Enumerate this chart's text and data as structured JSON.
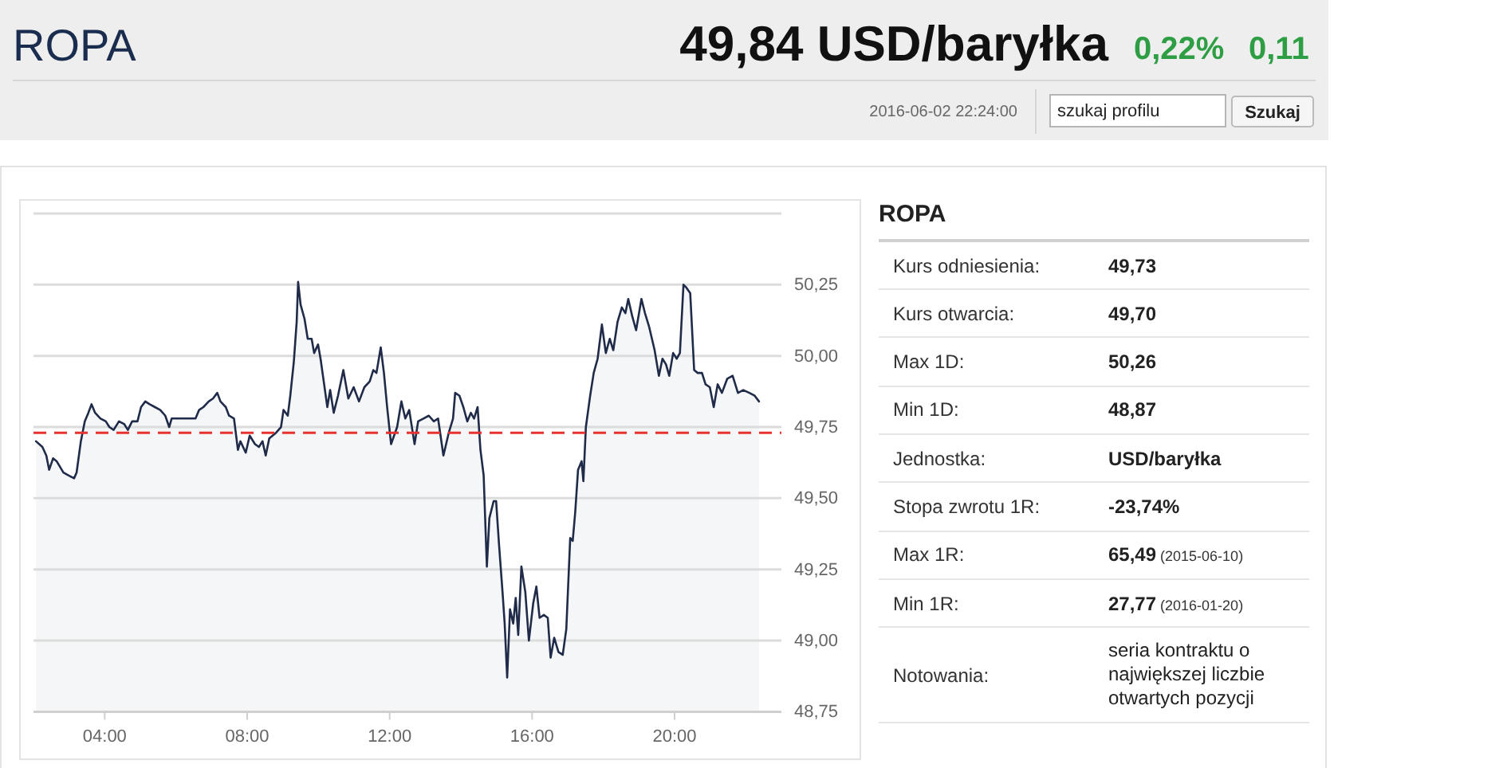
{
  "chart_data": [
    {
      "type": "other",
      "title": "ROPA",
      "annotations": [
        "49,84 USD/baryłka",
        "0,22%",
        "0,11",
        "2016-06-02 22:24:00",
        "szukaj profilu",
        "Szukaj"
      ]
    },
    {
      "type": "area",
      "color": "#1f2b48",
      "xlim": [
        2,
        23
      ],
      "ylim": [
        48.75,
        50.5
      ],
      "xticks": [
        {
          "value": 4,
          "label": "04:00"
        },
        {
          "value": 8,
          "label": "08:00"
        },
        {
          "value": 12,
          "label": "12:00"
        },
        {
          "value": 16,
          "label": "16:00"
        },
        {
          "value": 20,
          "label": "20:00"
        }
      ],
      "yticks": [
        {
          "value": 48.75,
          "label": "48,75"
        },
        {
          "value": 49,
          "label": "49,00"
        },
        {
          "value": 49.25,
          "label": "49,25"
        },
        {
          "value": 49.5,
          "label": "49,50"
        },
        {
          "value": 49.75,
          "label": "49,75"
        },
        {
          "value": 50,
          "label": "50,00"
        },
        {
          "value": 50.25,
          "label": "50,25"
        },
        {
          "value": 50.5,
          "label": null
        }
      ],
      "grid": "y",
      "ref_lines": [
        {
          "axis": "y",
          "value": 49.73,
          "color": "#e8322f",
          "line_style": "dashed"
        }
      ],
      "x": [
        2.07,
        2.25,
        2.36,
        2.44,
        2.55,
        2.65,
        2.84,
        2.99,
        3.14,
        3.21,
        3.33,
        3.44,
        3.54,
        3.63,
        3.73,
        3.88,
        4.03,
        4.13,
        4.25,
        4.4,
        4.55,
        4.65,
        4.77,
        4.92,
        5.02,
        5.14,
        5.26,
        5.41,
        5.56,
        5.7,
        5.81,
        5.88,
        6.03,
        6.33,
        6.55,
        6.65,
        6.77,
        6.92,
        7.04,
        7.16,
        7.25,
        7.4,
        7.49,
        7.63,
        7.74,
        7.81,
        7.96,
        8.07,
        8.22,
        8.33,
        8.43,
        8.52,
        8.62,
        8.81,
        8.95,
        9.02,
        9.14,
        9.21,
        9.31,
        9.39,
        9.43,
        9.5,
        9.61,
        9.7,
        9.81,
        9.88,
        9.99,
        10.06,
        10.15,
        10.25,
        10.33,
        10.43,
        10.55,
        10.7,
        10.84,
        10.99,
        11.14,
        11.29,
        11.44,
        11.54,
        11.63,
        11.75,
        11.84,
        11.93,
        12.04,
        12.21,
        12.33,
        12.44,
        12.55,
        12.7,
        12.8,
        12.95,
        13.1,
        13.24,
        13.36,
        13.51,
        13.66,
        13.78,
        13.84,
        13.96,
        14.07,
        14.18,
        14.28,
        14.37,
        14.47,
        14.55,
        14.64,
        14.73,
        14.8,
        14.92,
        14.99,
        15.07,
        15.17,
        15.23,
        15.3,
        15.38,
        15.47,
        15.54,
        15.61,
        15.7,
        15.81,
        15.91,
        16.03,
        16.12,
        16.21,
        16.33,
        16.44,
        16.52,
        16.62,
        16.74,
        16.86,
        16.96,
        17.07,
        17.14,
        17.21,
        17.29,
        17.39,
        17.44,
        17.51,
        17.63,
        17.73,
        17.84,
        17.96,
        18.07,
        18.18,
        18.28,
        18.4,
        18.52,
        18.62,
        18.7,
        18.81,
        18.92,
        19.07,
        19.17,
        19.29,
        19.44,
        19.56,
        19.66,
        19.76,
        19.85,
        19.96,
        20.06,
        20.15,
        20.25,
        20.33,
        20.44,
        20.55,
        20.65,
        20.77,
        20.87,
        20.99,
        21.1,
        21.21,
        21.33,
        21.48,
        21.63,
        21.78,
        21.93,
        22.1,
        22.25,
        22.37
      ],
      "values": [
        49.7,
        49.68,
        49.65,
        49.6,
        49.64,
        49.63,
        49.59,
        49.58,
        49.57,
        49.59,
        49.7,
        49.77,
        49.8,
        49.83,
        49.8,
        49.78,
        49.77,
        49.75,
        49.74,
        49.77,
        49.76,
        49.74,
        49.77,
        49.77,
        49.82,
        49.84,
        49.83,
        49.82,
        49.81,
        49.79,
        49.75,
        49.78,
        49.78,
        49.78,
        49.78,
        49.81,
        49.82,
        49.84,
        49.85,
        49.87,
        49.84,
        49.82,
        49.79,
        49.78,
        49.67,
        49.7,
        49.66,
        49.72,
        49.69,
        49.68,
        49.7,
        49.65,
        49.71,
        49.73,
        49.75,
        49.81,
        49.79,
        49.86,
        49.98,
        50.12,
        50.26,
        50.18,
        50.13,
        50.06,
        50.06,
        50.01,
        50.04,
        49.99,
        49.91,
        49.82,
        49.88,
        49.8,
        49.86,
        49.95,
        49.85,
        49.89,
        49.84,
        49.89,
        49.91,
        49.95,
        49.94,
        50.03,
        49.94,
        49.82,
        49.69,
        49.75,
        49.84,
        49.78,
        49.81,
        49.69,
        49.77,
        49.78,
        49.79,
        49.77,
        49.78,
        49.65,
        49.73,
        49.78,
        49.87,
        49.86,
        49.82,
        49.77,
        49.8,
        49.78,
        49.82,
        49.67,
        49.58,
        49.26,
        49.43,
        49.49,
        49.49,
        49.34,
        49.17,
        49.06,
        48.87,
        49.11,
        49.06,
        49.15,
        49.02,
        49.26,
        49.17,
        49,
        49.13,
        49.19,
        49.08,
        49.09,
        49.08,
        48.94,
        49.01,
        48.96,
        48.95,
        49.04,
        49.36,
        49.35,
        49.45,
        49.6,
        49.63,
        49.56,
        49.75,
        49.86,
        49.94,
        49.99,
        50.11,
        50.01,
        50.06,
        50.02,
        50.12,
        50.17,
        50.15,
        50.2,
        50.14,
        50.09,
        50.2,
        50.15,
        50.1,
        50.02,
        49.93,
        49.99,
        49.97,
        49.93,
        50.01,
        49.99,
        50.01,
        50.25,
        50.24,
        50.22,
        49.95,
        49.94,
        49.94,
        49.9,
        49.89,
        49.82,
        49.9,
        49.87,
        49.92,
        49.93,
        49.87,
        49.88,
        49.87,
        49.86,
        49.84
      ]
    },
    {
      "type": "other",
      "title": "ROPA",
      "annotations": [
        "Kurs odniesienia:",
        "49,73",
        "Kurs otwarcia:",
        "49,70",
        "Max 1D:",
        "50,26",
        "Min 1D:",
        "48,87",
        "Jednostka:",
        "USD/baryłka",
        "Stopa zwrotu 1R:",
        "-23,74%",
        "Max 1R:",
        "65,49 (2015-06-10)",
        "Min 1R:",
        "27,77 (2016-01-20)",
        "Notowania:",
        "seria kontraktu o największej liczbie otwartych pozycji"
      ]
    }
  ]
}
